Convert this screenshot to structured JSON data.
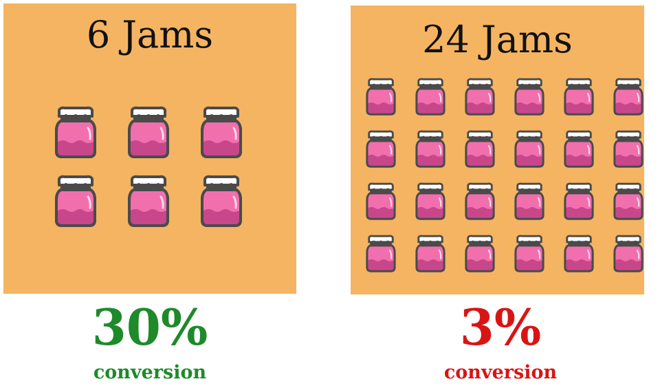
{
  "left": {
    "title": "6 Jams",
    "jar_count": 6,
    "percent": "30%",
    "caption": "conversion",
    "color": "#1e8a2a"
  },
  "right": {
    "title": "24 Jams",
    "jar_count": 24,
    "percent": "3%",
    "caption": "conversion",
    "color": "#d81515"
  },
  "icons": {
    "jar": "jam-jar-icon"
  },
  "colors": {
    "panel": "#f4b462",
    "jar_body": "#f26fae",
    "jar_jam": "#c8478b",
    "jar_outline": "#4a4a4a",
    "lid": "#ffffff"
  }
}
